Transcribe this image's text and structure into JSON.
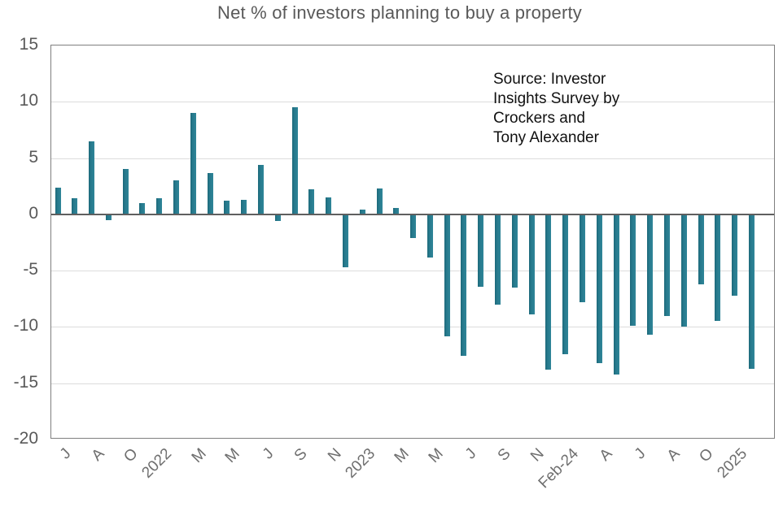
{
  "title": "Net % of investors planning to buy a property",
  "source_annotation": {
    "lines": [
      "Source: Investor",
      "Insights Survey by",
      "Crockers and",
      "Tony Alexander"
    ]
  },
  "chart_data": {
    "type": "bar",
    "title": "Net % of investors planning to buy a property",
    "values": [
      2.4,
      1.4,
      6.5,
      -0.5,
      4.0,
      1.0,
      1.4,
      3.0,
      9.0,
      3.7,
      1.2,
      1.3,
      4.4,
      -0.6,
      9.5,
      2.2,
      1.5,
      -4.7,
      0.4,
      2.3,
      0.6,
      -2.1,
      -3.8,
      -10.8,
      -12.6,
      -6.4,
      -8.0,
      -6.5,
      -8.9,
      -13.8,
      -12.4,
      -7.8,
      -13.2,
      -14.2,
      -9.9,
      -10.7,
      -9.0,
      -10.0,
      -6.2,
      -9.5,
      -7.2,
      -13.7
    ],
    "x_tick_labels": [
      "J",
      "A",
      "O",
      "2022",
      "M",
      "M",
      "J",
      "S",
      "N",
      "2023",
      "M",
      "M",
      "J",
      "S",
      "N",
      "Feb-24",
      "A",
      "J",
      "A",
      "O",
      "2025"
    ],
    "x_tick_every": 2,
    "y_ticks": [
      15,
      10,
      5,
      0,
      -5,
      -10,
      -15,
      -20
    ],
    "ylim": [
      -20,
      15
    ],
    "grid": true,
    "legend": "none",
    "bar_color": "#26798c",
    "annotation": "Source: Investor Insights Survey by Crockers and Tony Alexander"
  },
  "colors": {
    "bar": "#26798c",
    "title_text": "#595959",
    "tick_text": "#595959",
    "gridline": "#dcdcdc",
    "zero_line": "#5f5f5f",
    "plot_border": "#7f7f7f",
    "annotation_text": "#111111"
  }
}
